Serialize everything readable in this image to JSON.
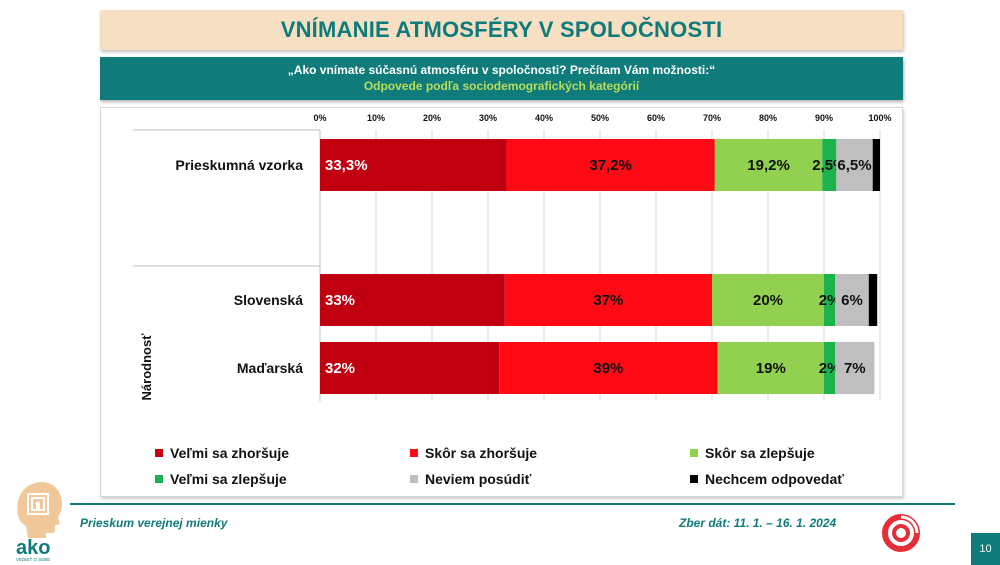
{
  "header": {
    "title": "VNÍMANIE ATMOSFÉRY V SPOLOČNOSTI",
    "question": "„Ako vnímate súčasnú atmosféru v spoločnosti? Prečítam Vám možnosti:“",
    "subtitle": "Odpovede podľa sociodemografických kategórií"
  },
  "chart_data": {
    "type": "bar",
    "orientation": "horizontal",
    "stacked": true,
    "x_ticks": [
      "0%",
      "10%",
      "20%",
      "30%",
      "40%",
      "50%",
      "60%",
      "70%",
      "80%",
      "90%",
      "100%"
    ],
    "xlim": [
      0,
      100
    ],
    "group_label": "Národnosť",
    "categories": [
      "Prieskumná vzorka",
      "Slovenská",
      "Maďarská"
    ],
    "series": [
      {
        "name": "Veľmi sa zhoršuje",
        "color": "#c00010",
        "values": [
          33.3,
          33,
          32
        ],
        "labels": [
          "33,3%",
          "33%",
          "32%"
        ],
        "label_color": "#ffffff"
      },
      {
        "name": "Skôr sa zhoršuje",
        "color": "#ff0a14",
        "values": [
          37.2,
          37,
          39
        ],
        "labels": [
          "37,2%",
          "37%",
          "39%"
        ],
        "label_color": "#111111"
      },
      {
        "name": "Skôr sa zlepšuje",
        "color": "#92d050",
        "values": [
          19.2,
          20,
          19
        ],
        "labels": [
          "19,2%",
          "20%",
          "19%"
        ],
        "label_color": "#111111"
      },
      {
        "name": "Veľmi sa zlepšuje",
        "color": "#1cb24c",
        "values": [
          2.5,
          2,
          2
        ],
        "labels": [
          "2,5%",
          "2%",
          "2%"
        ],
        "label_color": "#111111"
      },
      {
        "name": "Neviem posúdiť",
        "color": "#bfbfbf",
        "values": [
          6.5,
          6,
          7
        ],
        "labels": [
          "6,5%",
          "6%",
          "7%"
        ],
        "label_color": "#111111"
      },
      {
        "name": "Nechcem odpovedať",
        "color": "#000000",
        "values": [
          1.3,
          1.5,
          0
        ],
        "labels": [
          "",
          "",
          ""
        ],
        "label_color": "#ffffff"
      }
    ],
    "legend_position": "bottom",
    "grid": true
  },
  "footer": {
    "left": "Prieskum verejnej mienky",
    "right": "Zber dát: 11. 1. – 16. 1. 2024",
    "page": "10"
  },
  "branding": {
    "logo_left_text": "ako",
    "logo_left_tagline": "VEDIEŤ O SEBE",
    "accent_color": "#0f7b7b"
  }
}
